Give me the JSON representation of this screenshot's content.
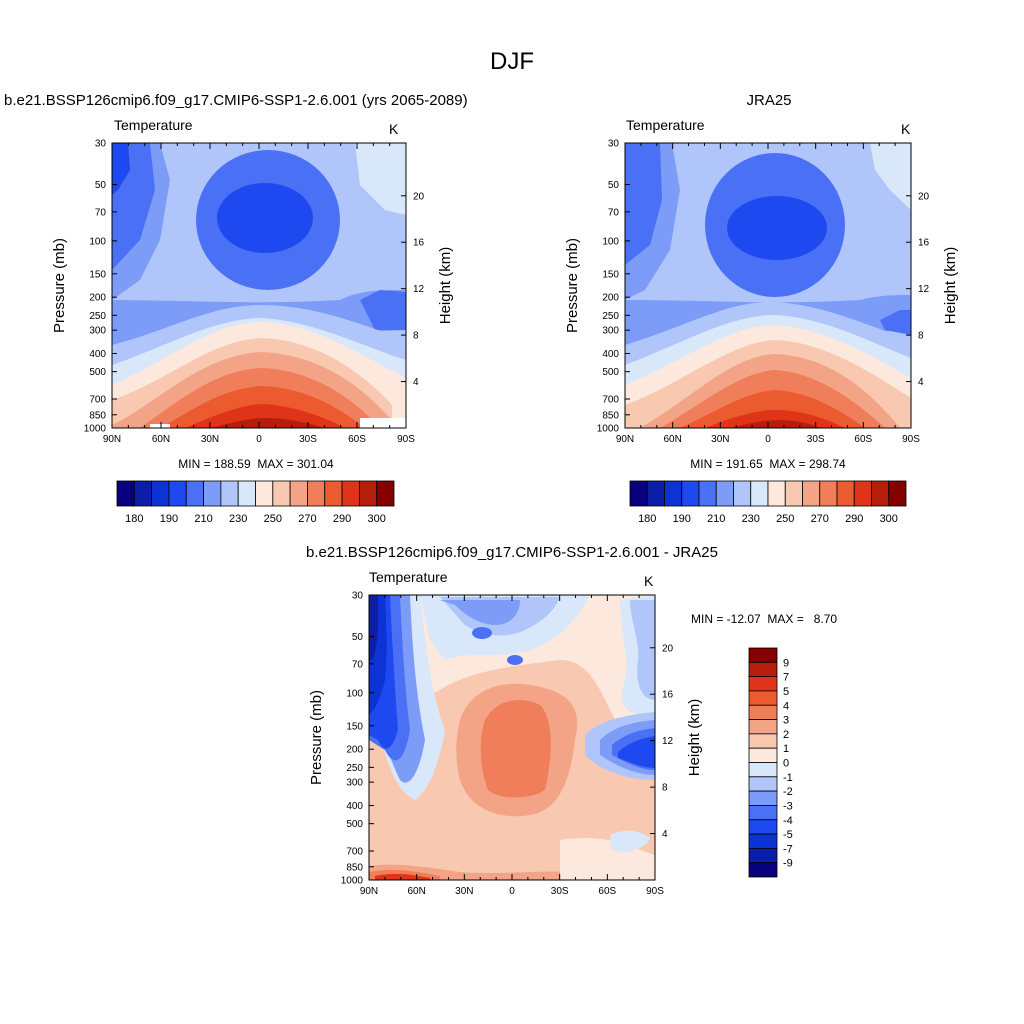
{
  "main_title": "DJF",
  "panels": [
    {
      "id": "model",
      "title": "b.e21.BSSP126cmip6.f09_g17.CMIP6-SSP1-2.6.001 (yrs 2065-2089)",
      "variable": "Temperature",
      "units": "K",
      "ylabel_left": "Pressure (mb)",
      "ylabel_right": "Height (km)",
      "minmax": "MIN = 188.59  MAX = 301.04",
      "pressure_ticks": [
        "30",
        "50",
        "70",
        "100",
        "150",
        "200",
        "250",
        "300",
        "400",
        "500",
        "700",
        "850",
        "1000"
      ],
      "height_ticks": [
        "20",
        "16",
        "12",
        "8",
        "4"
      ],
      "lat_ticks": [
        "90N",
        "60N",
        "30N",
        "0",
        "30S",
        "60S",
        "90S"
      ],
      "colorbar_labels": [
        "180",
        "190",
        "210",
        "230",
        "250",
        "270",
        "290",
        "300"
      ]
    },
    {
      "id": "obs",
      "title": "JRA25",
      "variable": "Temperature",
      "units": "K",
      "ylabel_left": "Pressure (mb)",
      "ylabel_right": "Height (km)",
      "minmax": "MIN = 191.65  MAX = 298.74",
      "pressure_ticks": [
        "30",
        "50",
        "70",
        "100",
        "150",
        "200",
        "250",
        "300",
        "400",
        "500",
        "700",
        "850",
        "1000"
      ],
      "height_ticks": [
        "20",
        "16",
        "12",
        "8",
        "4"
      ],
      "lat_ticks": [
        "90N",
        "60N",
        "30N",
        "0",
        "30S",
        "60S",
        "90S"
      ],
      "colorbar_labels": [
        "180",
        "190",
        "210",
        "230",
        "250",
        "270",
        "290",
        "300"
      ]
    },
    {
      "id": "diff",
      "title": "b.e21.BSSP126cmip6.f09_g17.CMIP6-SSP1-2.6.001 - JRA25",
      "variable": "Temperature",
      "units": "K",
      "ylabel_left": "Pressure (mb)",
      "ylabel_right": "Height (km)",
      "minmax": "MIN = -12.07  MAX =   8.70",
      "pressure_ticks": [
        "30",
        "50",
        "70",
        "100",
        "150",
        "200",
        "250",
        "300",
        "400",
        "500",
        "700",
        "850",
        "1000"
      ],
      "height_ticks": [
        "20",
        "16",
        "12",
        "8",
        "4"
      ],
      "lat_ticks": [
        "90N",
        "60N",
        "30N",
        "0",
        "30S",
        "60S",
        "90S"
      ],
      "colorbar_labels": [
        "9",
        "7",
        "5",
        "4",
        "3",
        "2",
        "1",
        "0",
        "-1",
        "-2",
        "-3",
        "-4",
        "-5",
        "-7",
        "-9"
      ]
    }
  ],
  "colors": {
    "abs_scale": [
      "#08007f",
      "#0a1ea8",
      "#0d32d6",
      "#1f49f0",
      "#4a70f5",
      "#7d9cf8",
      "#b0c6fa",
      "#d9e7fb",
      "#fde8dd",
      "#f8c8b0",
      "#f4a486",
      "#f07e5a",
      "#ec5a30",
      "#e03418",
      "#b61e0c",
      "#850000"
    ],
    "diff_scale": [
      "#850000",
      "#b61e0c",
      "#e03418",
      "#ec5a30",
      "#f07e5a",
      "#f4a486",
      "#f8c8b0",
      "#fde8dd",
      "#d9e7fb",
      "#b0c6fa",
      "#7d9cf8",
      "#4a70f5",
      "#1f49f0",
      "#0d32d6",
      "#0a1ea8",
      "#08007f"
    ]
  },
  "chart_data": [
    {
      "type": "heatmap",
      "title": "b.e21.BSSP126cmip6.f09_g17.CMIP6-SSP1-2.6.001 (yrs 2065-2089)",
      "variable": "Temperature",
      "units": "K",
      "xlabel": "",
      "ylabel": "Pressure (mb)",
      "ylabel_right": "Height (km)",
      "x_ticks": [
        "90N",
        "60N",
        "30N",
        "0",
        "30S",
        "60S",
        "90S"
      ],
      "y_ticks": [
        30,
        50,
        70,
        100,
        150,
        200,
        250,
        300,
        400,
        500,
        700,
        850,
        1000
      ],
      "y_scale": "log",
      "y_inverted": true,
      "min": 188.59,
      "max": 301.04,
      "contour_levels": [
        180,
        185,
        190,
        200,
        210,
        220,
        230,
        240,
        250,
        260,
        270,
        280,
        290,
        295,
        300
      ],
      "colorbar_labels": [
        180,
        190,
        210,
        230,
        250,
        270,
        290,
        300
      ]
    },
    {
      "type": "heatmap",
      "title": "JRA25",
      "variable": "Temperature",
      "units": "K",
      "xlabel": "",
      "ylabel": "Pressure (mb)",
      "ylabel_right": "Height (km)",
      "x_ticks": [
        "90N",
        "60N",
        "30N",
        "0",
        "30S",
        "60S",
        "90S"
      ],
      "y_ticks": [
        30,
        50,
        70,
        100,
        150,
        200,
        250,
        300,
        400,
        500,
        700,
        850,
        1000
      ],
      "y_scale": "log",
      "y_inverted": true,
      "min": 191.65,
      "max": 298.74,
      "contour_levels": [
        180,
        185,
        190,
        200,
        210,
        220,
        230,
        240,
        250,
        260,
        270,
        280,
        290,
        295,
        300
      ],
      "colorbar_labels": [
        180,
        190,
        210,
        230,
        250,
        270,
        290,
        300
      ]
    },
    {
      "type": "heatmap",
      "title": "b.e21.BSSP126cmip6.f09_g17.CMIP6-SSP1-2.6.001 - JRA25",
      "variable": "Temperature",
      "units": "K",
      "xlabel": "",
      "ylabel": "Pressure (mb)",
      "ylabel_right": "Height (km)",
      "x_ticks": [
        "90N",
        "60N",
        "30N",
        "0",
        "30S",
        "60S",
        "90S"
      ],
      "y_ticks": [
        30,
        50,
        70,
        100,
        150,
        200,
        250,
        300,
        400,
        500,
        700,
        850,
        1000
      ],
      "y_scale": "log",
      "y_inverted": true,
      "min": -12.07,
      "max": 8.7,
      "contour_levels": [
        9,
        7,
        5,
        4,
        3,
        2,
        1,
        0,
        -1,
        -2,
        -3,
        -4,
        -5,
        -7,
        -9
      ],
      "colorbar_labels": [
        9,
        7,
        5,
        4,
        3,
        2,
        1,
        0,
        -1,
        -2,
        -3,
        -4,
        -5,
        -7,
        -9
      ]
    }
  ]
}
